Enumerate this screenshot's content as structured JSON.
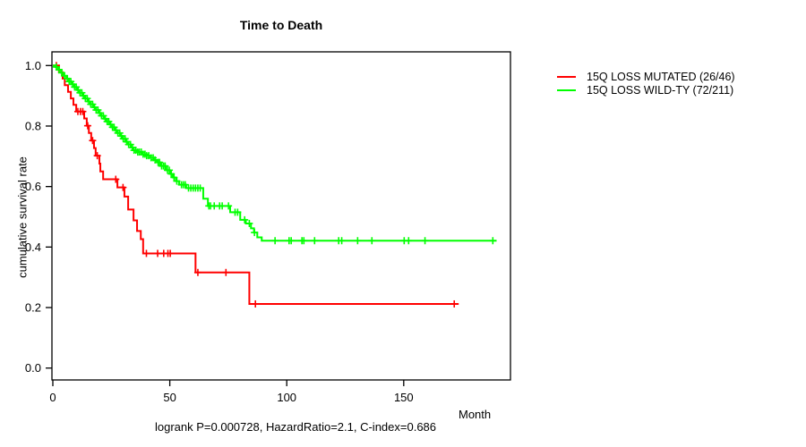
{
  "window": {
    "background": "#ffffff",
    "text_color": "#000000",
    "axis_color": "#000000"
  },
  "chart_data": {
    "type": "line",
    "subtype": "kaplan-meier-step",
    "title": "Time to Death",
    "xlabel": "Month",
    "ylabel": "cumulative survival rate",
    "annotation": "logrank P=0.000728, HazardRatio=2.1, C-index=0.686",
    "x_ticks": [
      0,
      50,
      100,
      150
    ],
    "y_tick_labels": [
      "0.0",
      "0.2",
      "0.4",
      "0.6",
      "0.8",
      "1.0"
    ],
    "xlim": [
      0,
      196
    ],
    "ylim": [
      -0.045,
      1.045
    ],
    "grid": false,
    "legend_position": "right-outside",
    "series": [
      {
        "name": "15Q LOSS MUTATED (26/46)",
        "color": "#ff0000",
        "events": "26/46",
        "steps": [
          [
            0,
            1.0
          ],
          [
            2.6,
            0.978
          ],
          [
            4.2,
            0.957
          ],
          [
            5.1,
            0.935
          ],
          [
            6.5,
            0.913
          ],
          [
            7.7,
            0.891
          ],
          [
            8.8,
            0.87
          ],
          [
            10.0,
            0.848
          ],
          [
            13.4,
            0.825
          ],
          [
            14.5,
            0.801
          ],
          [
            15.4,
            0.777
          ],
          [
            16.4,
            0.752
          ],
          [
            17.6,
            0.727
          ],
          [
            18.3,
            0.702
          ],
          [
            19.9,
            0.676
          ],
          [
            20.3,
            0.65
          ],
          [
            21.5,
            0.624
          ],
          [
            27.6,
            0.597
          ],
          [
            30.6,
            0.567
          ],
          [
            32.2,
            0.524
          ],
          [
            34.5,
            0.488
          ],
          [
            36.0,
            0.453
          ],
          [
            37.6,
            0.426
          ],
          [
            38.6,
            0.379
          ],
          [
            61.0,
            0.316
          ],
          [
            84.0,
            0.212
          ]
        ],
        "end_month": 173.5,
        "censor_months": [
          1.5,
          10.7,
          11.8,
          12.8,
          14.9,
          17.0,
          19.0,
          26.9,
          30.0,
          40.0,
          44.8,
          47.4,
          49.2,
          50.2,
          62.0,
          74.0,
          86.6,
          171.6
        ]
      },
      {
        "name": "15Q LOSS WILD-TY (72/211)",
        "color": "#00ff00",
        "events": "72/211",
        "steps": [
          [
            0,
            1.0
          ],
          [
            1.2,
            0.995
          ],
          [
            2.3,
            0.986
          ],
          [
            3.5,
            0.976
          ],
          [
            4.6,
            0.966
          ],
          [
            5.8,
            0.957
          ],
          [
            6.9,
            0.947
          ],
          [
            8.1,
            0.938
          ],
          [
            9.2,
            0.929
          ],
          [
            10.4,
            0.919
          ],
          [
            11.5,
            0.91
          ],
          [
            12.7,
            0.9
          ],
          [
            13.8,
            0.891
          ],
          [
            15.0,
            0.881
          ],
          [
            16.1,
            0.872
          ],
          [
            17.3,
            0.862
          ],
          [
            18.4,
            0.853
          ],
          [
            19.6,
            0.843
          ],
          [
            20.7,
            0.834
          ],
          [
            21.9,
            0.824
          ],
          [
            23.0,
            0.815
          ],
          [
            24.2,
            0.805
          ],
          [
            25.3,
            0.796
          ],
          [
            26.5,
            0.786
          ],
          [
            27.6,
            0.777
          ],
          [
            28.8,
            0.767
          ],
          [
            29.9,
            0.758
          ],
          [
            31.1,
            0.748
          ],
          [
            32.2,
            0.739
          ],
          [
            33.4,
            0.729
          ],
          [
            34.5,
            0.72
          ],
          [
            36.0,
            0.714
          ],
          [
            38.0,
            0.707
          ],
          [
            40.0,
            0.702
          ],
          [
            41.8,
            0.695
          ],
          [
            43.0,
            0.688
          ],
          [
            44.4,
            0.68
          ],
          [
            46.0,
            0.668
          ],
          [
            48.3,
            0.654
          ],
          [
            50.0,
            0.642
          ],
          [
            51.3,
            0.63
          ],
          [
            52.6,
            0.618
          ],
          [
            54.0,
            0.606
          ],
          [
            57.0,
            0.595
          ],
          [
            64.3,
            0.56
          ],
          [
            66.3,
            0.536
          ],
          [
            75.8,
            0.515
          ],
          [
            80.1,
            0.49
          ],
          [
            82.5,
            0.478
          ],
          [
            84.7,
            0.462
          ],
          [
            86.0,
            0.448
          ],
          [
            87.4,
            0.432
          ],
          [
            89.3,
            0.421
          ]
        ],
        "end_month": 189.7,
        "censor_months": [
          1.5,
          2.7,
          3.8,
          5.0,
          6.2,
          7.0,
          7.7,
          8.5,
          9.3,
          10.0,
          10.8,
          11.6,
          12.4,
          13.1,
          13.9,
          14.7,
          15.4,
          16.2,
          17.0,
          17.8,
          18.5,
          19.3,
          20.1,
          20.8,
          21.6,
          22.4,
          23.2,
          23.9,
          24.7,
          25.5,
          26.2,
          27.0,
          27.8,
          28.6,
          29.3,
          30.1,
          30.9,
          31.6,
          32.4,
          33.2,
          34.0,
          34.7,
          35.5,
          36.3,
          37.0,
          37.8,
          38.6,
          39.4,
          40.1,
          41.0,
          42.0,
          42.9,
          43.7,
          45.0,
          45.6,
          46.5,
          47.3,
          48.0,
          49.0,
          49.8,
          50.6,
          51.8,
          53.0,
          55.0,
          55.8,
          56.6,
          58.0,
          59.0,
          60.0,
          61.0,
          62.0,
          63.0,
          66.7,
          67.4,
          69.0,
          71.3,
          72.4,
          75.1,
          77.9,
          79.0,
          82.0,
          84.0,
          86.2,
          95.0,
          101.0,
          101.9,
          106.5,
          107.3,
          111.9,
          122.2,
          123.5,
          130.3,
          136.4,
          150.2,
          152.1,
          159.1,
          188.1
        ]
      }
    ]
  }
}
